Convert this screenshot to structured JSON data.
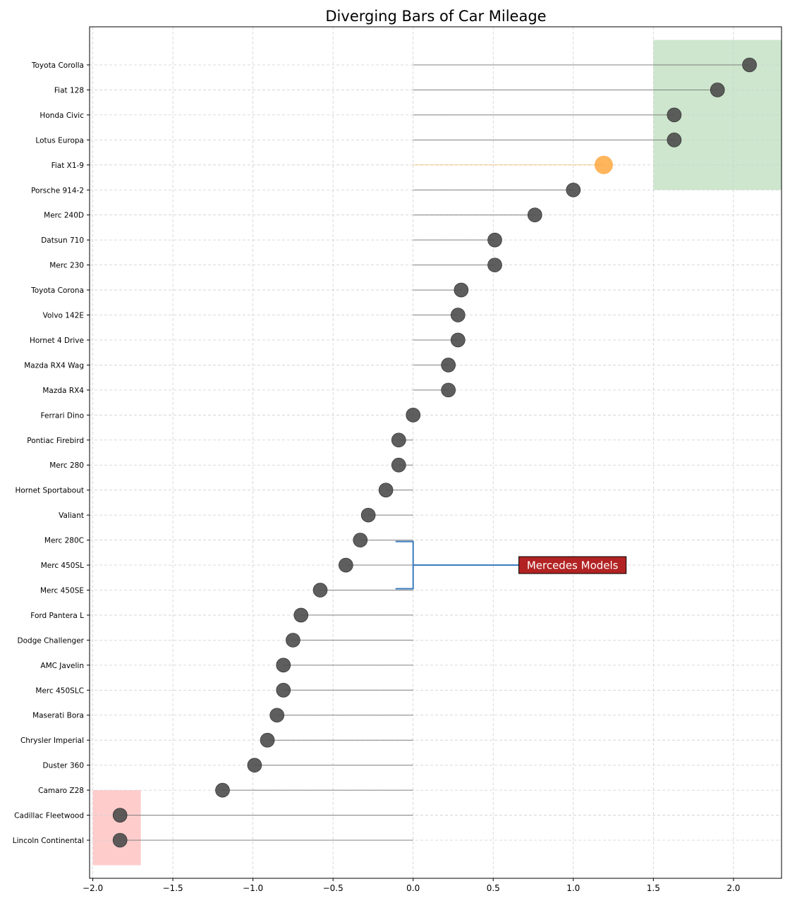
{
  "chart_data": {
    "type": "scatter",
    "title": "Diverging Bars of Car Mileage",
    "xlabel": "",
    "ylabel": "",
    "xlim": [
      -2.02,
      2.3
    ],
    "xticks": [
      -2.0,
      -1.5,
      -1.0,
      -0.5,
      0.0,
      0.5,
      1.0,
      1.5,
      2.0
    ],
    "xtick_labels": [
      "−2.0",
      "−1.5",
      "−1.0",
      "−0.5",
      "0.0",
      "0.5",
      "1.0",
      "1.5",
      "2.0"
    ],
    "grid": true,
    "categories": [
      "Lincoln Continental",
      "Cadillac Fleetwood",
      "Camaro Z28",
      "Duster 360",
      "Chrysler Imperial",
      "Maserati Bora",
      "Merc 450SLC",
      "AMC Javelin",
      "Dodge Challenger",
      "Ford Pantera L",
      "Merc 450SE",
      "Merc 450SL",
      "Merc 280C",
      "Valiant",
      "Hornet Sportabout",
      "Merc 280",
      "Pontiac Firebird",
      "Ferrari Dino",
      "Mazda RX4",
      "Mazda RX4 Wag",
      "Hornet 4 Drive",
      "Volvo 142E",
      "Toyota Corona",
      "Merc 230",
      "Datsun 710",
      "Merc 240D",
      "Porsche 914-2",
      "Fiat X1-9",
      "Lotus Europa",
      "Honda Civic",
      "Fiat 128",
      "Toyota Corolla"
    ],
    "values": [
      -1.83,
      -1.83,
      -1.19,
      -0.99,
      -0.91,
      -0.85,
      -0.81,
      -0.81,
      -0.75,
      -0.7,
      -0.58,
      -0.42,
      -0.33,
      -0.28,
      -0.17,
      -0.09,
      -0.09,
      0.0,
      0.22,
      0.22,
      0.28,
      0.28,
      0.3,
      0.51,
      0.51,
      0.76,
      1.0,
      1.19,
      1.63,
      1.63,
      1.9,
      2.1
    ],
    "highlight": {
      "category": "Fiat X1-9",
      "color": "#ffa233"
    },
    "colors": {
      "point": "#4d4d4d",
      "line": "#808080",
      "highlight": "#ffa233",
      "annotation_bracket": "#3a7bbf",
      "annotation_box": "#b22222",
      "top_region": "#cde6cd",
      "bottom_region": "#ffcccc"
    },
    "annotation": {
      "text": "Mercedes Models",
      "categories": [
        "Merc 280C",
        "Merc 450SL",
        "Merc 450SE"
      ]
    },
    "regions": [
      {
        "name": "top",
        "x_range": [
          1.5,
          2.3
        ],
        "categories": [
          "Toyota Corolla",
          "Fiat 128",
          "Honda Civic",
          "Lotus Europa",
          "Fiat X1-9"
        ]
      },
      {
        "name": "bottom",
        "x_range": [
          -2.0,
          -1.7
        ],
        "categories": [
          "Cadillac Fleetwood",
          "Lincoln Continental"
        ]
      }
    ]
  }
}
